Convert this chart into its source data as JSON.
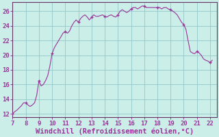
{
  "title": "",
  "xlabel": "Windchill (Refroidissement éolien,°C)",
  "background_color": "#cceee8",
  "line_color": "#993399",
  "marker_color": "#993399",
  "grid_color": "#99cccc",
  "x_data": [
    7.0,
    7.17,
    7.33,
    7.5,
    7.67,
    7.83,
    8.0,
    8.17,
    8.33,
    8.5,
    8.67,
    8.83,
    9.0,
    9.17,
    9.33,
    9.5,
    9.67,
    9.83,
    10.0,
    10.17,
    10.33,
    10.5,
    10.67,
    10.83,
    11.0,
    11.17,
    11.33,
    11.5,
    11.67,
    11.83,
    12.0,
    12.17,
    12.33,
    12.5,
    12.67,
    12.83,
    13.0,
    13.17,
    13.33,
    13.5,
    13.67,
    13.83,
    14.0,
    14.17,
    14.33,
    14.5,
    14.67,
    14.83,
    15.0,
    15.17,
    15.33,
    15.5,
    15.67,
    15.83,
    16.0,
    16.17,
    16.33,
    16.5,
    16.67,
    16.83,
    17.0,
    17.17,
    17.33,
    17.5,
    17.67,
    17.83,
    18.0,
    18.17,
    18.33,
    18.5,
    18.67,
    18.83,
    19.0,
    19.17,
    19.33,
    19.5,
    19.67,
    19.83,
    20.0,
    20.17,
    20.33,
    20.5,
    20.67,
    20.83,
    21.0,
    21.17,
    21.33,
    21.5,
    21.67,
    21.83,
    22.0,
    22.17
  ],
  "y_data": [
    12.0,
    12.3,
    12.5,
    12.8,
    13.1,
    13.5,
    13.5,
    13.2,
    13.0,
    13.2,
    13.5,
    14.5,
    16.5,
    15.8,
    16.0,
    16.5,
    17.2,
    18.5,
    20.2,
    21.0,
    21.5,
    22.0,
    22.5,
    23.0,
    23.2,
    23.0,
    23.3,
    24.0,
    24.5,
    24.8,
    24.5,
    25.0,
    25.3,
    25.5,
    25.2,
    24.8,
    25.2,
    25.5,
    25.3,
    25.3,
    25.4,
    25.5,
    25.3,
    25.2,
    25.4,
    25.5,
    25.3,
    25.2,
    25.5,
    26.0,
    26.2,
    26.0,
    25.8,
    26.0,
    26.3,
    26.5,
    26.5,
    26.3,
    26.5,
    26.7,
    26.7,
    26.5,
    26.5,
    26.5,
    26.5,
    26.5,
    26.5,
    26.5,
    26.3,
    26.5,
    26.5,
    26.3,
    26.2,
    26.0,
    25.8,
    25.5,
    25.0,
    24.5,
    24.2,
    23.5,
    22.0,
    20.5,
    20.3,
    20.2,
    20.5,
    20.3,
    20.0,
    19.5,
    19.3,
    19.2,
    19.0,
    19.3
  ],
  "marker_x": [
    7,
    8,
    9,
    10,
    11,
    12,
    13,
    14,
    15,
    16,
    17,
    18,
    19,
    20,
    21,
    22
  ],
  "marker_y": [
    12.0,
    13.5,
    16.5,
    20.2,
    23.2,
    24.5,
    25.2,
    25.3,
    25.5,
    26.3,
    26.7,
    26.5,
    26.2,
    24.2,
    20.5,
    19.0
  ],
  "xlim": [
    7,
    22.5
  ],
  "ylim": [
    11.5,
    27.2
  ],
  "xticks": [
    7,
    8,
    9,
    10,
    11,
    12,
    13,
    14,
    15,
    16,
    17,
    18,
    19,
    20,
    21,
    22
  ],
  "yticks": [
    12,
    14,
    16,
    18,
    20,
    22,
    24,
    26
  ],
  "axis_color": "#663366",
  "tick_color": "#993399",
  "label_color": "#993399",
  "xlabel_fontsize": 7.5,
  "tick_fontsize": 6.5
}
